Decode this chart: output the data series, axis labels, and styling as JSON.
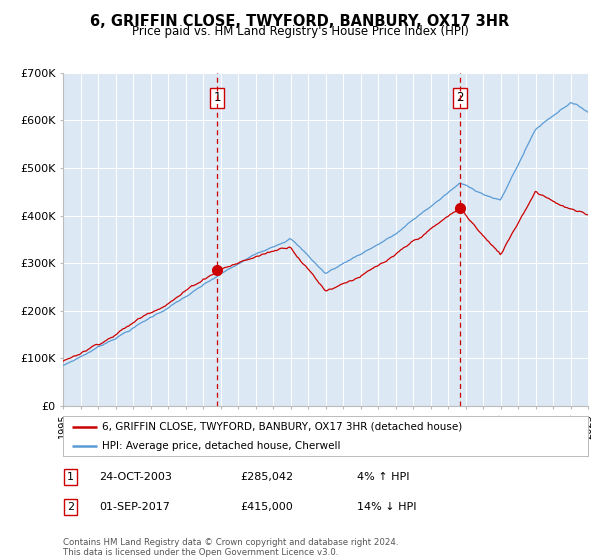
{
  "title": "6, GRIFFIN CLOSE, TWYFORD, BANBURY, OX17 3HR",
  "subtitle": "Price paid vs. HM Land Registry's House Price Index (HPI)",
  "legend_line1": "6, GRIFFIN CLOSE, TWYFORD, BANBURY, OX17 3HR (detached house)",
  "legend_line2": "HPI: Average price, detached house, Cherwell",
  "annotation1_label": "1",
  "annotation1_date": "24-OCT-2003",
  "annotation1_price": "£285,042",
  "annotation1_hpi": "4% ↑ HPI",
  "annotation2_label": "2",
  "annotation2_date": "01-SEP-2017",
  "annotation2_price": "£415,000",
  "annotation2_hpi": "14% ↓ HPI",
  "footer": "Contains HM Land Registry data © Crown copyright and database right 2024.\nThis data is licensed under the Open Government Licence v3.0.",
  "hpi_color": "#5b9bd5",
  "price_color": "#cc0000",
  "dot_color": "#cc0000",
  "vline_color": "#cc0000",
  "bg_color": "#dce9f5",
  "grid_color": "#ffffff",
  "ylim": [
    0,
    700000
  ],
  "yticks": [
    0,
    100000,
    200000,
    300000,
    400000,
    500000,
    600000,
    700000
  ],
  "ytick_labels": [
    "£0",
    "£100K",
    "£200K",
    "£300K",
    "£400K",
    "£500K",
    "£600K",
    "£700K"
  ],
  "sale1_year": 2003.82,
  "sale1_value": 285042,
  "sale2_year": 2017.67,
  "sale2_value": 415000,
  "xmin": 1995,
  "xmax": 2025
}
